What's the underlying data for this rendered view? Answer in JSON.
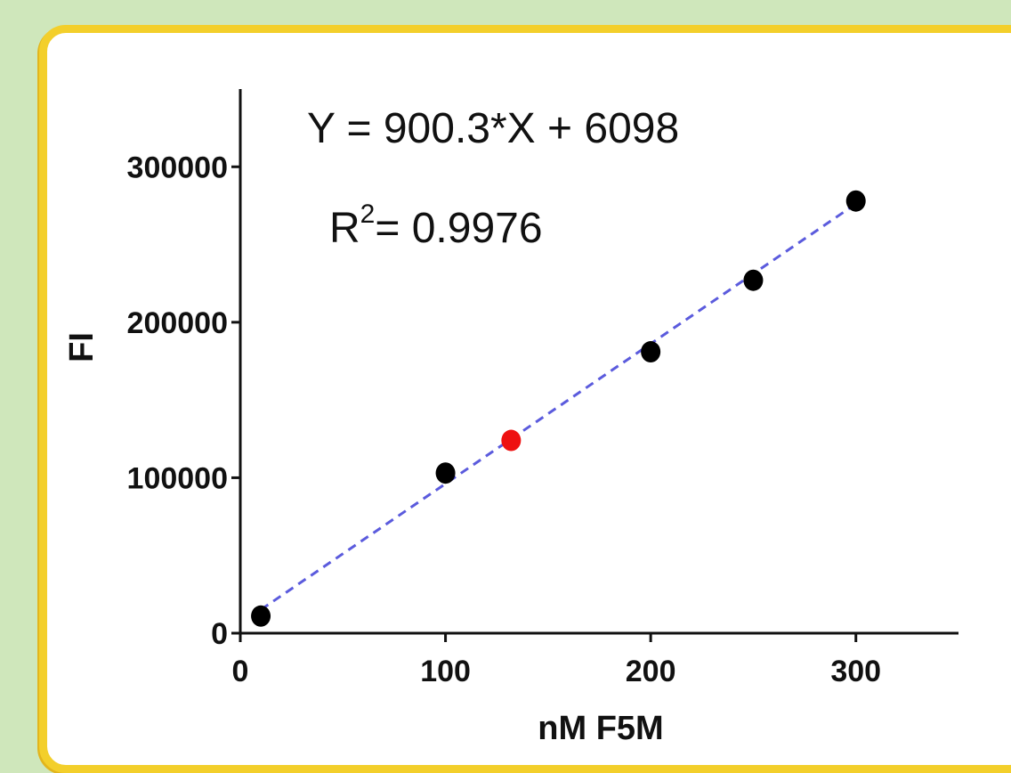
{
  "chart_data": {
    "type": "scatter",
    "xlabel": "nM F5M",
    "ylabel": "FI",
    "xlim": [
      0,
      350
    ],
    "ylim": [
      0,
      350000
    ],
    "x_ticks": [
      0,
      100,
      200,
      300
    ],
    "y_ticks": [
      0,
      100000,
      200000,
      300000
    ],
    "x_tick_labels": [
      "0",
      "100",
      "200",
      "300"
    ],
    "y_tick_labels": [
      "0",
      "100000",
      "200000",
      "300000"
    ],
    "grid": false,
    "series": [
      {
        "color": "#000000",
        "points": [
          {
            "x": 10,
            "y": 11000
          },
          {
            "x": 100,
            "y": 103000
          },
          {
            "x": 200,
            "y": 181000
          },
          {
            "x": 250,
            "y": 227000
          },
          {
            "x": 300,
            "y": 278000
          }
        ]
      },
      {
        "color": "#ee1111",
        "points": [
          {
            "x": 132,
            "y": 124000
          }
        ]
      }
    ],
    "fit_line": {
      "slope": 900.3,
      "intercept": 6098,
      "x_range": [
        10,
        300
      ],
      "color": "#5b5bdd",
      "style": "dashed"
    },
    "annotations": {
      "equation": "Y = 900.3*X + 6098",
      "r2_label": "R",
      "r2_superscript": "2",
      "r2_value": "= 0.9976"
    }
  }
}
